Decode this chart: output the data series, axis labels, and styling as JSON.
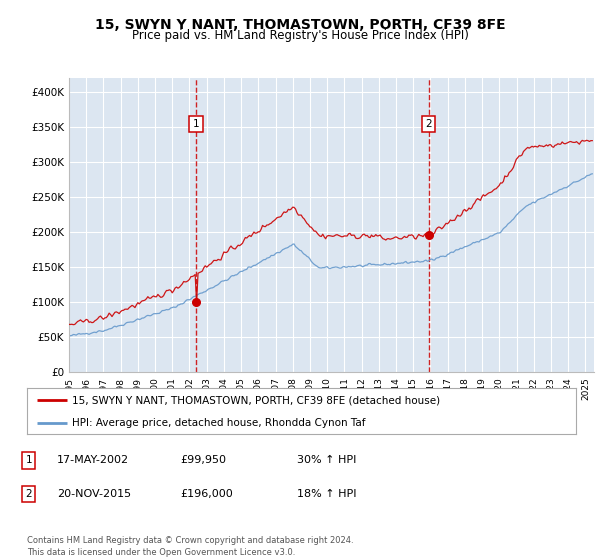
{
  "title": "15, SWYN Y NANT, THOMASTOWN, PORTH, CF39 8FE",
  "subtitle": "Price paid vs. HM Land Registry's House Price Index (HPI)",
  "ylabel_ticks": [
    "£0",
    "£50K",
    "£100K",
    "£150K",
    "£200K",
    "£250K",
    "£300K",
    "£350K",
    "£400K"
  ],
  "ytick_values": [
    0,
    50000,
    100000,
    150000,
    200000,
    250000,
    300000,
    350000,
    400000
  ],
  "ylim": [
    0,
    420000
  ],
  "xlim_start": 1995.0,
  "xlim_end": 2025.5,
  "background_color": "#dce6f1",
  "plot_bg_color": "#dce6f1",
  "grid_color": "#ffffff",
  "sale1_year": 2002.38,
  "sale1_price": 99950,
  "sale1_label": "1",
  "sale2_year": 2015.9,
  "sale2_price": 196000,
  "sale2_label": "2",
  "legend_line1": "15, SWYN Y NANT, THOMASTOWN, PORTH, CF39 8FE (detached house)",
  "legend_line2": "HPI: Average price, detached house, Rhondda Cynon Taf",
  "annotation1": [
    "1",
    "17-MAY-2002",
    "£99,950",
    "30% ↑ HPI"
  ],
  "annotation2": [
    "2",
    "20-NOV-2015",
    "£196,000",
    "18% ↑ HPI"
  ],
  "footnote": "Contains HM Land Registry data © Crown copyright and database right 2024.\nThis data is licensed under the Open Government Licence v3.0.",
  "line_color_price": "#cc0000",
  "line_color_hpi": "#6699cc",
  "title_fontsize": 10,
  "subtitle_fontsize": 9
}
